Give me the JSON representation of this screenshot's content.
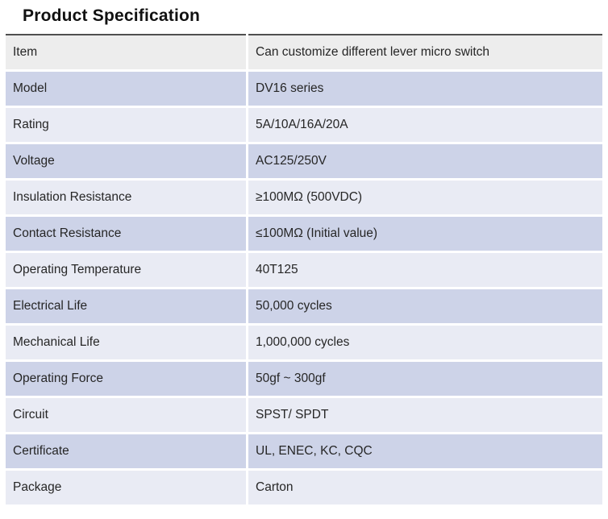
{
  "title": "Product Specification",
  "table": {
    "rows": [
      {
        "label": "Item",
        "value": "Can customize different lever micro switch"
      },
      {
        "label": "Model",
        "value": "DV16 series"
      },
      {
        "label": "Rating",
        "value": "5A/10A/16A/20A"
      },
      {
        "label": "Voltage",
        "value": "AC125/250V"
      },
      {
        "label": "Insulation Resistance",
        "value": "≥100MΩ (500VDC)"
      },
      {
        "label": "Contact Resistance",
        "value": "≤100MΩ (Initial value)"
      },
      {
        "label": "Operating Temperature",
        "value": "40T125"
      },
      {
        "label": "Electrical Life",
        "value": "50,000 cycles"
      },
      {
        "label": "Mechanical Life",
        "value": "1,000,000 cycles"
      },
      {
        "label": "Operating Force",
        "value": "50gf ~ 300gf"
      },
      {
        "label": "Circuit",
        "value": "SPST/ SPDT"
      },
      {
        "label": "Certificate",
        "value": "UL, ENEC, KC, CQC"
      },
      {
        "label": "Package",
        "value": "Carton"
      }
    ]
  },
  "colors": {
    "text": "#262626",
    "text_title": "#111111",
    "top_border": "#4f4f4f",
    "header_gray": "#ededed",
    "row_lavender": "#cdd3e8",
    "row_pale": "#e9ebf4"
  }
}
